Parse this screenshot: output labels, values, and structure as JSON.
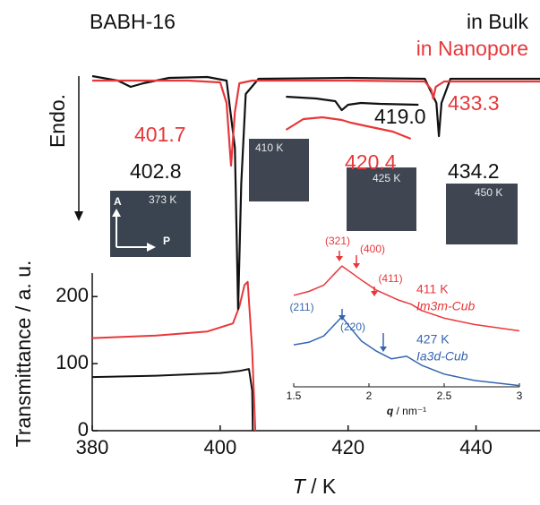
{
  "chart_data": [
    {
      "type": "line",
      "xlabel_var": "T",
      "xlabel_unit": " / K",
      "ylabel": "Transmittance / a. u.",
      "xlim": [
        380,
        450
      ],
      "xticks": [
        380,
        400,
        420,
        440
      ],
      "ylim": [
        0,
        235
      ],
      "yticks": [
        0,
        100,
        200
      ],
      "series": [
        {
          "name": "in Bulk",
          "color": "#111111",
          "x": [
            380,
            390,
            400,
            403,
            404.5,
            405,
            405.1
          ],
          "values": [
            80,
            82,
            86,
            89,
            92,
            60,
            0
          ]
        },
        {
          "name": "in Nanopore",
          "color": "#e8373a",
          "x": [
            380,
            390,
            398,
            402,
            403,
            403.8,
            404.3,
            405,
            405.5
          ],
          "values": [
            138,
            142,
            148,
            160,
            185,
            217,
            222,
            120,
            0
          ]
        }
      ]
    },
    {
      "type": "line",
      "ylabel": "Endo.",
      "xlim": [
        380,
        450
      ],
      "ylim": [
        -270,
        20
      ],
      "series": [
        {
          "color": "#111111",
          "x": [
            380,
            384,
            386,
            388,
            392,
            398,
            401,
            402.3,
            402.8,
            403.3,
            404,
            406,
            420,
            432,
            433.8,
            434.2,
            434.6,
            436,
            450
          ],
          "values": [
            0,
            -5,
            -12,
            -8,
            -2,
            -1,
            -5,
            -80,
            -260,
            -120,
            -20,
            -3,
            -2,
            -3,
            -30,
            -67,
            -30,
            -3,
            -3
          ]
        },
        {
          "color": "#e8373a",
          "x": [
            380,
            395,
            400,
            401,
            401.7,
            402.3,
            403,
            405,
            420,
            432,
            433,
            433.3,
            433.7,
            435,
            450
          ],
          "values": [
            -5,
            -5,
            -7,
            -30,
            -100,
            -40,
            -8,
            -5,
            -5,
            -6,
            -15,
            -25,
            -12,
            -6,
            -6
          ]
        },
        {
          "color": "#111111",
          "x": [
            410.3,
            415,
            418,
            419,
            420,
            422,
            425,
            431
          ],
          "values": [
            -23,
            -25,
            -28,
            -38,
            -32,
            -30,
            -31,
            -32
          ]
        },
        {
          "color": "#e8373a",
          "x": [
            410.3,
            413,
            416,
            419,
            420.4,
            423,
            427,
            429.8
          ],
          "values": [
            -60,
            -48,
            -46,
            -49,
            -52,
            -56,
            -62,
            -70
          ]
        }
      ],
      "annotations": [
        "401.7",
        "402.8",
        "419.0",
        "420.4",
        "433.3",
        "434.2"
      ]
    },
    {
      "type": "line",
      "xlabel_var": "q",
      "xlabel_unit": " / nm⁻¹",
      "xlim": [
        1.5,
        3
      ],
      "xticks": [
        1.5,
        2,
        2.5,
        3
      ],
      "ylim": [
        0,
        100
      ],
      "series": [
        {
          "name": "411 K",
          "phase": "Im3m-Cub",
          "color": "#e8373a",
          "x": [
            1.5,
            1.6,
            1.7,
            1.78,
            1.82,
            1.88,
            1.95,
            2.05,
            2.2,
            2.28,
            2.35,
            2.5,
            2.7,
            3
          ],
          "values": [
            72,
            75,
            80,
            90,
            95,
            90,
            84,
            76,
            68,
            65,
            60,
            54,
            49,
            44
          ]
        },
        {
          "name": "427 K",
          "phase": "Ia3d-Cub",
          "color": "#3565b0",
          "x": [
            1.5,
            1.6,
            1.7,
            1.78,
            1.82,
            1.88,
            1.95,
            2.05,
            2.15,
            2.25,
            2.35,
            2.5,
            2.7,
            3
          ],
          "values": [
            33,
            35,
            40,
            50,
            55,
            46,
            36,
            28,
            22,
            24,
            17,
            10,
            5,
            1
          ]
        }
      ],
      "peaks": [
        "(321)",
        "(400)",
        "(411)",
        "(211)",
        "(220)"
      ]
    }
  ],
  "title": "BABH-16",
  "images": [
    "373 K",
    "410 K",
    "425 K",
    "450 K"
  ],
  "polarizer": [
    "A",
    "P"
  ]
}
